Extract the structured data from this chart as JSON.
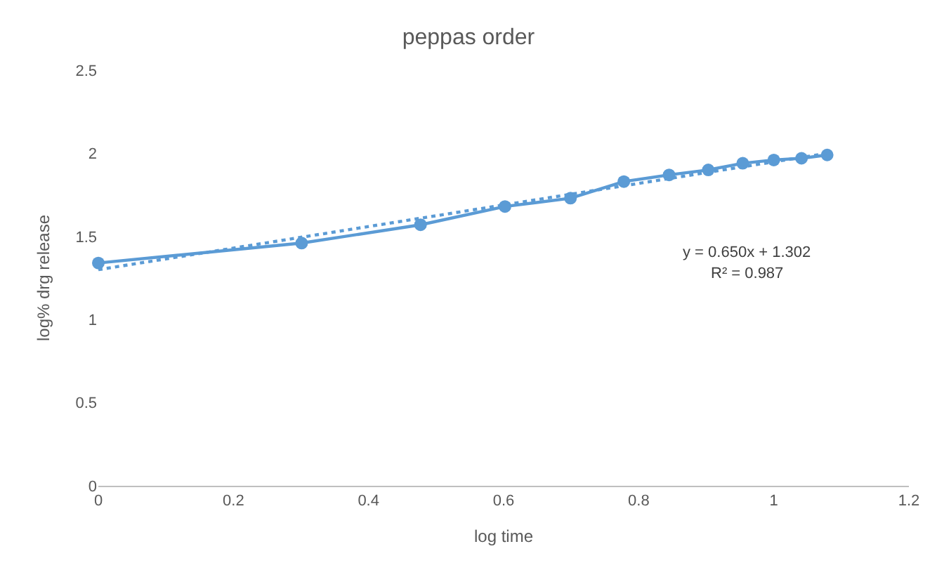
{
  "chart_data": {
    "type": "line",
    "title": "peppas order",
    "xlabel": "log time",
    "ylabel": "log% drg release",
    "x": [
      0,
      0.301,
      0.477,
      0.602,
      0.699,
      0.778,
      0.845,
      0.903,
      0.954,
      1.0,
      1.041,
      1.079
    ],
    "series": [
      {
        "color": "#5b9bd5",
        "values": [
          1.34,
          1.46,
          1.57,
          1.68,
          1.73,
          1.83,
          1.87,
          1.9,
          1.94,
          1.96,
          1.97,
          1.99
        ],
        "marker": "circle",
        "line_style": "solid"
      },
      {
        "type": "line",
        "color": "#5b9bd5",
        "x": [
          0,
          1.079
        ],
        "values": [
          1.3,
          2.0
        ],
        "line_style": "dotted"
      }
    ],
    "annotations": [
      "y = 0.650x + 1.302",
      "R² = 0.987"
    ],
    "xlim": [
      0,
      1.2
    ],
    "xticks": [
      0,
      0.2,
      0.4,
      0.6,
      0.8,
      1,
      1.2
    ],
    "ylim": [
      0,
      2.5
    ],
    "yticks": [
      0,
      0.5,
      1,
      1.5,
      2,
      2.5
    ],
    "grid": false
  }
}
